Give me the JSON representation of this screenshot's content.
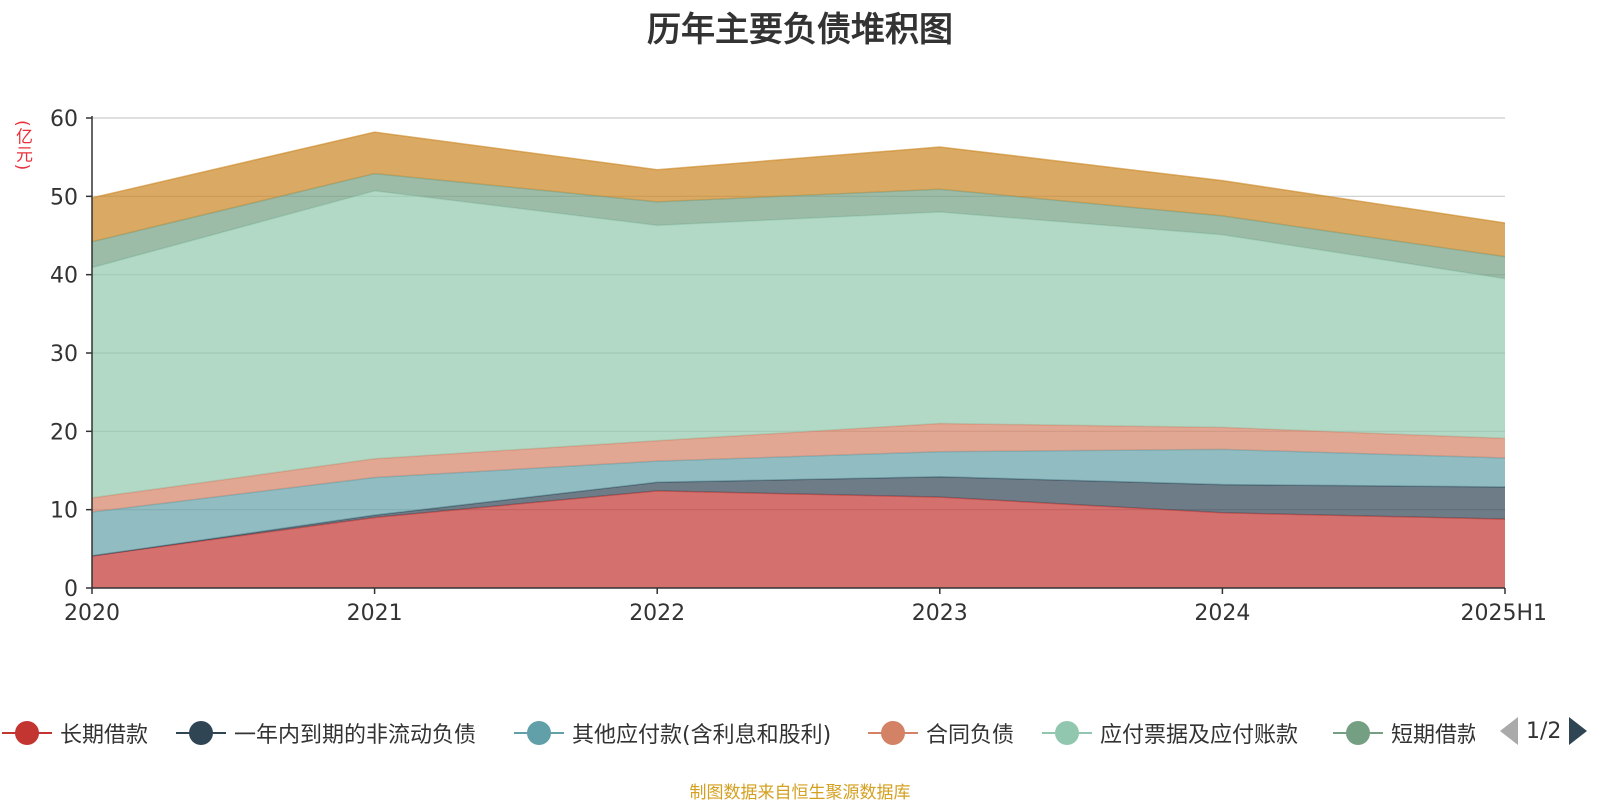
{
  "chart_data": {
    "type": "area",
    "stacked": true,
    "title": "历年主要负债堆积图",
    "y_unit": "(亿元)",
    "categories": [
      "2020",
      "2021",
      "2022",
      "2023",
      "2024",
      "2025H1"
    ],
    "ylim": [
      0,
      60
    ],
    "yticks": [
      0,
      10,
      20,
      30,
      40,
      50,
      60
    ],
    "grid": true,
    "series": [
      {
        "name": "长期借款",
        "color": "#c23531",
        "values": [
          4.1,
          9.0,
          12.4,
          11.6,
          9.6,
          8.8
        ]
      },
      {
        "name": "一年内到期的非流动负债",
        "color": "#2f4554",
        "values": [
          0.0,
          0.3,
          1.1,
          2.6,
          3.6,
          4.1
        ]
      },
      {
        "name": "其他应付款(含利息和股利)",
        "color": "#61a0a8",
        "values": [
          5.6,
          4.8,
          2.7,
          3.2,
          4.5,
          3.7
        ]
      },
      {
        "name": "合同负债",
        "color": "#d48265",
        "values": [
          1.8,
          2.4,
          2.6,
          3.6,
          2.8,
          2.5
        ]
      },
      {
        "name": "应付票据及应付账款",
        "color": "#91c7ae",
        "values": [
          29.4,
          34.2,
          27.5,
          27.0,
          24.6,
          20.4
        ]
      },
      {
        "name": "短期借款",
        "color": "#749f83",
        "values": [
          3.3,
          2.2,
          3.0,
          2.9,
          2.4,
          2.8
        ]
      },
      {
        "name": "",
        "color": "#ca8622",
        "values": [
          5.6,
          5.3,
          4.1,
          5.4,
          4.5,
          4.3
        ]
      }
    ]
  },
  "legend": {
    "items": [
      {
        "label": "长期借款",
        "color": "#c23531"
      },
      {
        "label": "一年内到期的非流动负债",
        "color": "#2f4554"
      },
      {
        "label": "其他应付款(含利息和股利)",
        "color": "#61a0a8"
      },
      {
        "label": "合同负债",
        "color": "#d48265"
      },
      {
        "label": "应付票据及应付账款",
        "color": "#91c7ae"
      },
      {
        "label": "短期借款",
        "color": "#749f83"
      }
    ],
    "page": "1/2",
    "prev_icon": "triangle-left-icon",
    "next_icon": "triangle-right-icon"
  },
  "source": "制图数据来自恒生聚源数据库"
}
